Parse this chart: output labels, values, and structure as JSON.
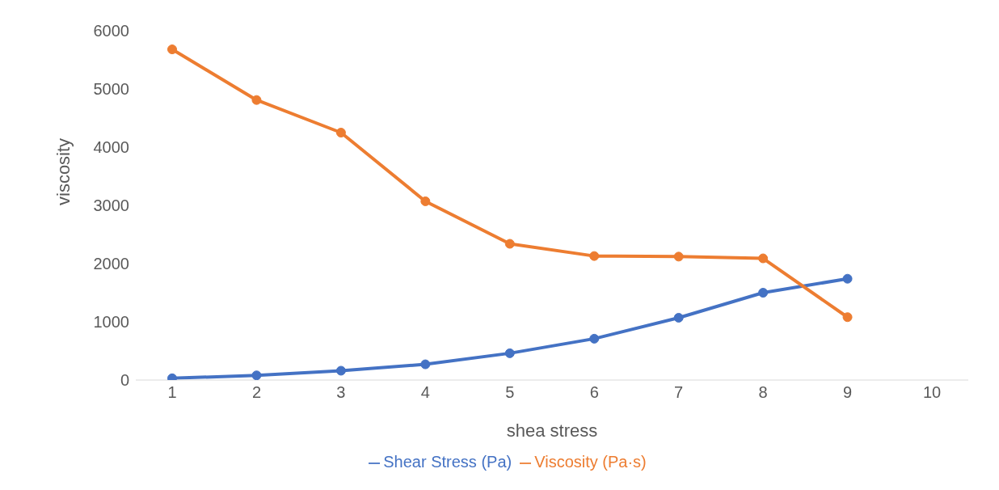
{
  "chart_data": {
    "type": "line",
    "xlabel": "shea stress",
    "ylabel": "viscosity",
    "categories": [
      "1",
      "2",
      "3",
      "4",
      "5",
      "6",
      "7",
      "8",
      "9",
      "10"
    ],
    "series": [
      {
        "name": "Shear Stress (Pa)",
        "color": "#4472c4",
        "values": [
          30,
          80,
          160,
          270,
          460,
          710,
          1070,
          1500,
          1740,
          null
        ]
      },
      {
        "name": "Viscosity (Pa·s)",
        "color": "#ed7d31",
        "values": [
          5680,
          4810,
          4250,
          3070,
          2340,
          2130,
          2120,
          2090,
          1080,
          null
        ]
      }
    ],
    "ylim": [
      0,
      6000
    ],
    "yticks": [
      0,
      1000,
      2000,
      3000,
      4000,
      5000,
      6000
    ],
    "grid": false,
    "legend": "bottom",
    "marker": "circle",
    "line_style": "solid"
  }
}
